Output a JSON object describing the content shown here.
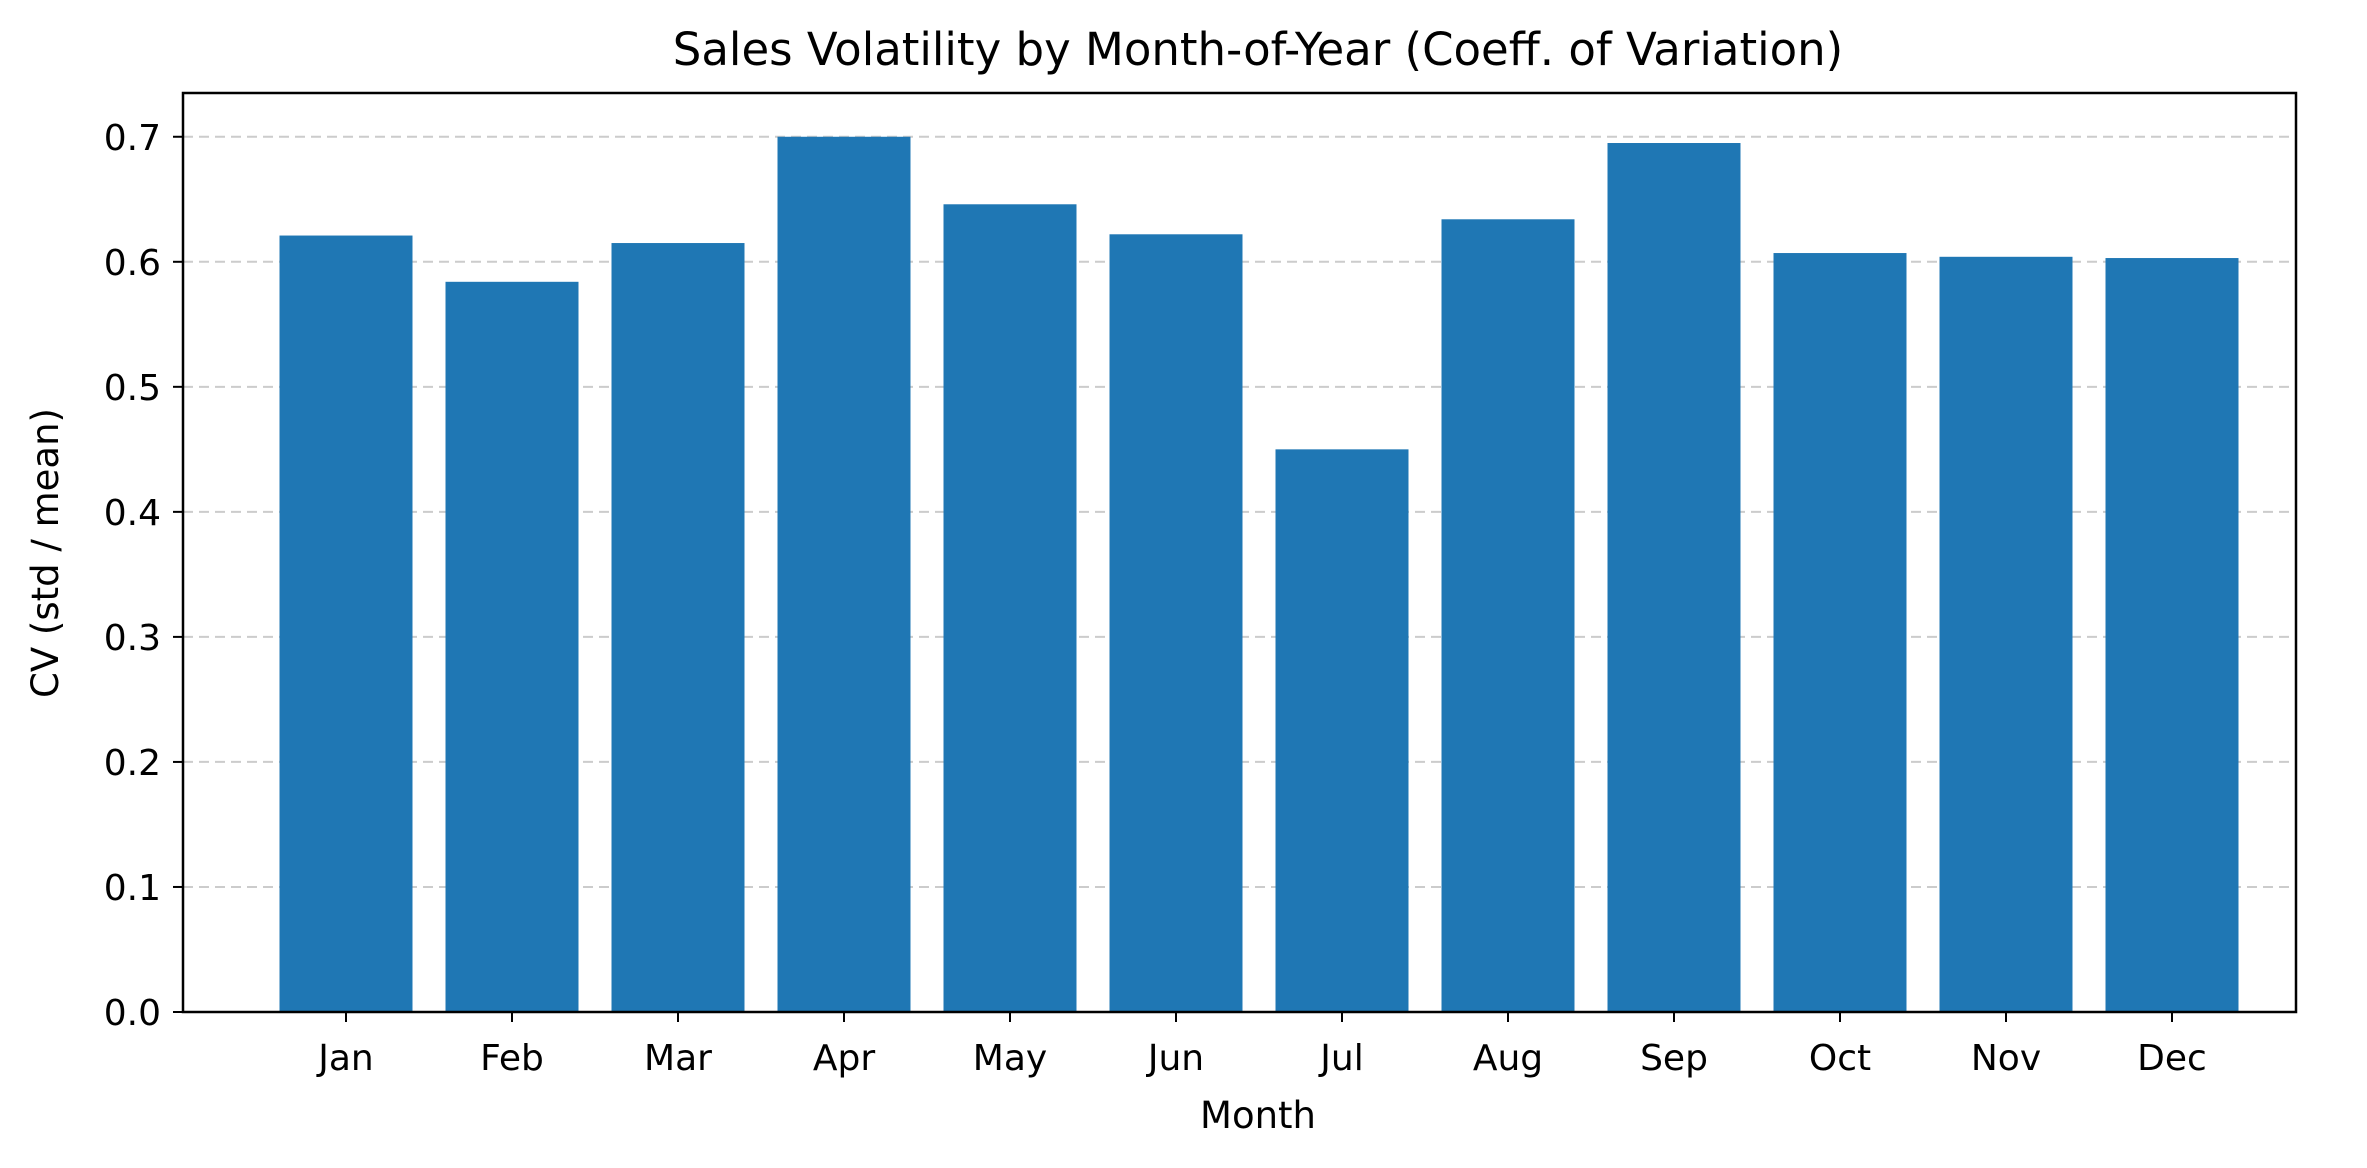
{
  "chart_data": {
    "type": "bar",
    "title": "Sales Volatility by Month-of-Year (Coeff. of Variation)",
    "xlabel": "Month",
    "ylabel": "CV (std / mean)",
    "categories": [
      "Jan",
      "Feb",
      "Mar",
      "Apr",
      "May",
      "Jun",
      "Jul",
      "Aug",
      "Sep",
      "Oct",
      "Nov",
      "Dec"
    ],
    "values": [
      0.621,
      0.584,
      0.615,
      0.7,
      0.646,
      0.622,
      0.45,
      0.634,
      0.695,
      0.607,
      0.604,
      0.603
    ],
    "ylim": [
      0,
      0.735
    ],
    "yticks": [
      0.0,
      0.1,
      0.2,
      0.3,
      0.4,
      0.5,
      0.6,
      0.7
    ],
    "ytick_labels": [
      "0.0",
      "0.1",
      "0.2",
      "0.3",
      "0.4",
      "0.5",
      "0.6",
      "0.7"
    ],
    "grid": "y-dashed",
    "bar_color": "#1f77b4",
    "grid_color": "#cccccc"
  }
}
